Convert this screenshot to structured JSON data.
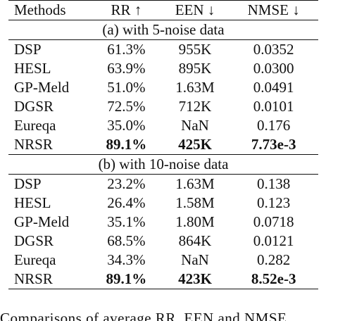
{
  "table": {
    "header": [
      "Methods",
      "RR ↑",
      "EEN ↓",
      "NMSE ↓"
    ],
    "sections": [
      {
        "title": "(a) with 5-noise data",
        "rows": [
          [
            "DSP",
            "61.3%",
            "955K",
            "0.0352"
          ],
          [
            "HESL",
            "63.9%",
            "895K",
            "0.0300"
          ],
          [
            "GP-Meld",
            "51.0%",
            "1.63M",
            "0.0491"
          ],
          [
            "DGSR",
            "72.5%",
            "712K",
            "0.0101"
          ],
          [
            "Eureqa",
            "35.0%",
            "NaN",
            "0.176"
          ],
          [
            "NRSR",
            "89.1%",
            "425K",
            "7.73e-3"
          ]
        ]
      },
      {
        "title": "(b) with 10-noise data",
        "rows": [
          [
            "DSP",
            "23.2%",
            "1.63M",
            "0.138"
          ],
          [
            "HESL",
            "26.4%",
            "1.58M",
            "0.123"
          ],
          [
            "GP-Meld",
            "35.1%",
            "1.80M",
            "0.0718"
          ],
          [
            "DGSR",
            "68.5%",
            "864K",
            "0.0121"
          ],
          [
            "Eureqa",
            "34.3%",
            "NaN",
            "0.282"
          ],
          [
            "NRSR",
            "89.1%",
            "423K",
            "8.52e-3"
          ]
        ]
      }
    ]
  },
  "caption": "Comparisons of average RR, EEN and NMSE"
}
